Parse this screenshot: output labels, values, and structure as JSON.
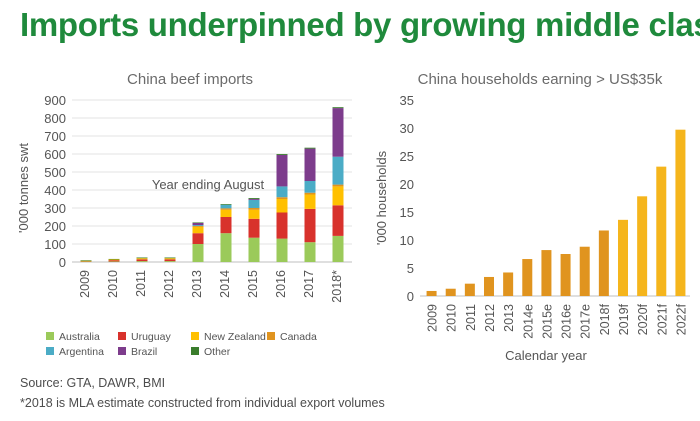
{
  "headline": "Imports underpinned by growing middle class",
  "source_note": "Source: GTA, DAWR, BMI",
  "estimate_note": "*2018 is MLA estimate constructed from individual export volumes",
  "chart_data": [
    {
      "type": "bar",
      "stacked": true,
      "title": "China beef imports",
      "xlabel": "Year ending August",
      "ylabel": "'000 tonnes swt",
      "ylim": [
        0,
        900
      ],
      "yticks": [
        0,
        100,
        200,
        300,
        400,
        500,
        600,
        700,
        800,
        900
      ],
      "grid": true,
      "legend_position": "bottom",
      "categories": [
        "2009",
        "2010",
        "2011",
        "2012",
        "2013",
        "2014",
        "2015",
        "2016",
        "2017",
        "2018*"
      ],
      "series": [
        {
          "name": "Australia",
          "color": "#9bca5a",
          "values": [
            3,
            3,
            5,
            5,
            100,
            160,
            135,
            130,
            110,
            145
          ]
        },
        {
          "name": "Uruguay",
          "color": "#d8322c",
          "values": [
            2,
            7,
            10,
            10,
            60,
            90,
            105,
            145,
            185,
            170
          ]
        },
        {
          "name": "New Zealand",
          "color": "#ffc000",
          "values": [
            2,
            4,
            6,
            6,
            35,
            40,
            50,
            75,
            80,
            105
          ]
        },
        {
          "name": "Canada",
          "color": "#e0941f",
          "values": [
            0,
            0,
            0,
            0,
            5,
            8,
            10,
            10,
            10,
            10
          ]
        },
        {
          "name": "Argentina",
          "color": "#4bacc6",
          "values": [
            0,
            0,
            0,
            0,
            5,
            20,
            45,
            60,
            65,
            155
          ]
        },
        {
          "name": "Brazil",
          "color": "#7d3c8c",
          "values": [
            0,
            0,
            0,
            0,
            12,
            0,
            5,
            175,
            180,
            270
          ]
        },
        {
          "name": "Other",
          "color": "#3a7d2c",
          "values": [
            3,
            3,
            4,
            4,
            3,
            4,
            5,
            5,
            5,
            5
          ]
        }
      ]
    },
    {
      "type": "bar",
      "title": "China households earning > US$35k",
      "xlabel": "Calendar year",
      "ylabel": "'000 households",
      "ylim": [
        0,
        35
      ],
      "yticks": [
        0,
        5,
        10,
        15,
        20,
        25,
        30,
        35
      ],
      "grid": false,
      "categories": [
        "2009",
        "2010",
        "2011",
        "2012",
        "2013",
        "2014e",
        "2015e",
        "2016e",
        "2017e",
        "2018f",
        "2019f",
        "2020f",
        "2021f",
        "2022f"
      ],
      "values": [
        0.9,
        1.3,
        2.2,
        3.4,
        4.2,
        6.6,
        8.2,
        7.5,
        8.8,
        11.7,
        13.6,
        17.8,
        23.1,
        29.7
      ],
      "colors": [
        "#e0941f",
        "#e0941f",
        "#e0941f",
        "#e0941f",
        "#e0941f",
        "#e0941f",
        "#e0941f",
        "#e0941f",
        "#e0941f",
        "#e0941f",
        "#f5b51c",
        "#f5b51c",
        "#f5b51c",
        "#f5b51c"
      ]
    }
  ]
}
